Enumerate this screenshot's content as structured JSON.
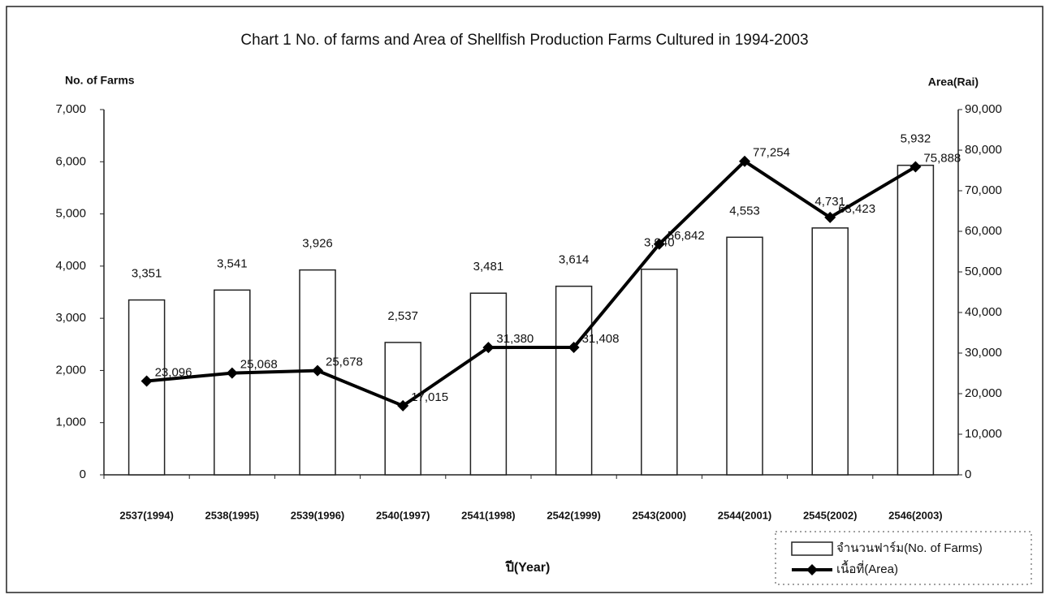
{
  "chart_data": {
    "type": "bar_line",
    "title": "Chart 1 No. of farms and Area of Shellfish Production Farms Cultured in 1994-2003",
    "y_label": "No. of Farms",
    "y2_label": "Area(Rai)",
    "x_label": "ปี(Year)",
    "categories": [
      "2537(1994)",
      "2538(1995)",
      "2539(1996)",
      "2540(1997)",
      "2541(1998)",
      "2542(1999)",
      "2543(2000)",
      "2544(2001)",
      "2545(2002)",
      "2546(2003)"
    ],
    "series": [
      {
        "name": "จำนวนฟาร์ม(No. of Farms)",
        "type": "bar",
        "color": "#ffffff",
        "values": [
          3351,
          3541,
          3926,
          2537,
          3481,
          3614,
          3940,
          4553,
          4731,
          5932
        ],
        "value_labels": [
          "3,351",
          "3,541",
          "3,926",
          "2,537",
          "3,481",
          "3,614",
          "3,940",
          "4,553",
          "4,731",
          "5,932"
        ]
      },
      {
        "name": "เนื้อที่(Area)",
        "type": "line",
        "axis": "y2",
        "color": "#000000",
        "values": [
          23096,
          25068,
          25678,
          17015,
          31380,
          31408,
          56842,
          77254,
          63423,
          75888
        ],
        "value_labels": [
          "23,096",
          "25,068",
          "25,678",
          "17,015",
          "31,380",
          "31,408",
          "56,842",
          "77,254",
          "63,423",
          "75,888"
        ]
      }
    ],
    "ylim": [
      0,
      7000
    ],
    "yticks": [
      0,
      {
        "value": 1000,
        "label": "1,000"
      },
      {
        "value": 2000,
        "label": "2,000"
      },
      {
        "value": 3000,
        "label": "3,000"
      },
      {
        "value": 4000,
        "label": "4,000"
      },
      {
        "value": 5000,
        "label": "5,000"
      },
      {
        "value": 6000,
        "label": "6,000"
      },
      {
        "value": 7000,
        "label": "7,000"
      }
    ],
    "y2lim": [
      0,
      90000
    ],
    "y2ticks": [
      0,
      {
        "value": 10000,
        "label": "10,000"
      },
      {
        "value": 20000,
        "label": "20,000"
      },
      {
        "value": 30000,
        "label": "30,000"
      },
      {
        "value": 40000,
        "label": "40,000"
      },
      {
        "value": 50000,
        "label": "50,000"
      },
      {
        "value": 60000,
        "label": "60,000"
      },
      {
        "value": 70000,
        "label": "70,000"
      },
      {
        "value": 80000,
        "label": "80,000"
      },
      {
        "value": 90000,
        "label": "90,000"
      }
    ],
    "grid": false,
    "legend": "bottom-right"
  }
}
